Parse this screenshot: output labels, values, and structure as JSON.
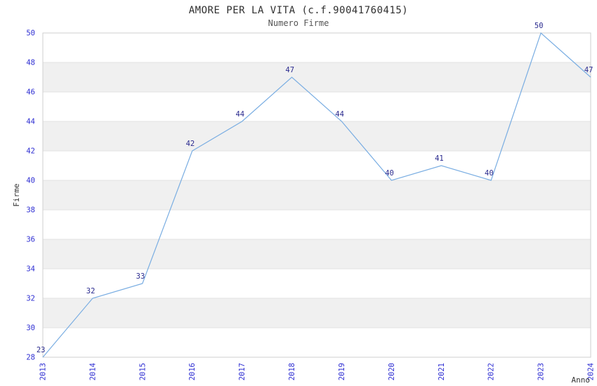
{
  "chart_data": {
    "type": "line",
    "title": "AMORE PER LA VITA (c.f.90041760415)",
    "subtitle": "Numero Firme",
    "xlabel": "Anno",
    "ylabel": "Firme",
    "x": [
      "2013",
      "2014",
      "2015",
      "2016",
      "2017",
      "2018",
      "2019",
      "2020",
      "2021",
      "2022",
      "2023",
      "2024"
    ],
    "series": [
      {
        "name": "Numero Firme",
        "values": [
          23,
          32,
          33,
          42,
          44,
          47,
          44,
          40,
          41,
          40,
          50,
          47
        ]
      }
    ],
    "point_labels": [
      "23",
      "32",
      "33",
      "42",
      "44",
      "47",
      "44",
      "40",
      "41",
      "40",
      "50",
      "47"
    ],
    "ylim": [
      28,
      50
    ],
    "yticks": [
      28,
      30,
      32,
      34,
      36,
      38,
      40,
      42,
      44,
      46,
      48,
      50
    ],
    "x_tick_rotation": -90,
    "grid": true,
    "legend": "none",
    "plot_bands": "alternating-gray",
    "colors": {
      "line": "#79ade2",
      "point_label": "#2b2b8f",
      "tick_label": "#2d2dd2",
      "band": "#f0f0f0",
      "grid": "#e2e2e2",
      "border": "#cfcfcf",
      "title": "#2f2f2f",
      "subtitle": "#555555",
      "axis_title": "#333333",
      "background": "#ffffff"
    }
  }
}
